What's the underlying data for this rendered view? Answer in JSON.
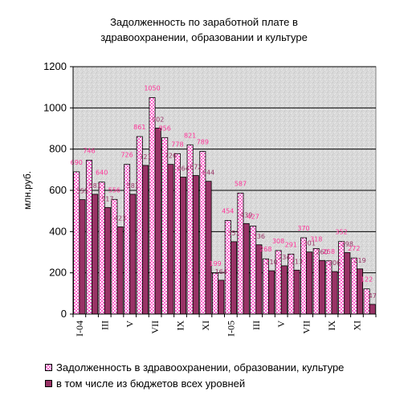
{
  "chart_data": {
    "type": "bar",
    "title_line1": "Задолженность по заработной плате в",
    "title_line2": "здравоохранении, образовании и культуре",
    "ylabel": "млн.руб.",
    "ylim": [
      0,
      1200
    ],
    "yticks": [
      "0",
      "200",
      "400",
      "600",
      "800",
      "1000",
      "1200"
    ],
    "xtick_labels": [
      "I-04",
      "III",
      "V",
      "VII",
      "IX",
      "XI",
      "I-05",
      "III",
      "V",
      "VII",
      "IX",
      "XI"
    ],
    "series": [
      {
        "name": "Задолженность в здравоохранении, образовании, культуре",
        "color": "#ff66cc",
        "values": [
          690,
          746,
          640,
          556,
          726,
          861,
          1050,
          856,
          778,
          821,
          789,
          199,
          454,
          587,
          427,
          268,
          308,
          291,
          370,
          318,
          258,
          352,
          272,
          122
        ]
      },
      {
        "name": "в том числе из бюджетов всех уровней",
        "color": "#993366",
        "values": [
          555,
          581,
          517,
          423,
          581,
          721,
          902,
          726,
          664,
          672,
          644,
          164,
          351,
          439,
          336,
          210,
          234,
          213,
          301,
          260,
          206,
          298,
          219,
          47
        ]
      }
    ],
    "data_labels": {
      "s1": [
        "690",
        "746",
        "640",
        "556",
        "726",
        "861",
        "1050",
        "856",
        "778",
        "821",
        "789",
        "199",
        "454",
        "587",
        "427",
        "268",
        "308",
        "291",
        "370",
        "318",
        "258",
        "352",
        "272",
        "122"
      ],
      "s2": [
        "555",
        "581",
        "517",
        "423",
        "581",
        "721",
        "902",
        "726",
        "664",
        "672",
        "644",
        "164",
        "351",
        "439",
        "336",
        "210",
        "234",
        "213",
        "301",
        "260",
        "206",
        "298",
        "219",
        "47"
      ]
    },
    "grid": true,
    "legend_position": "bottom"
  }
}
